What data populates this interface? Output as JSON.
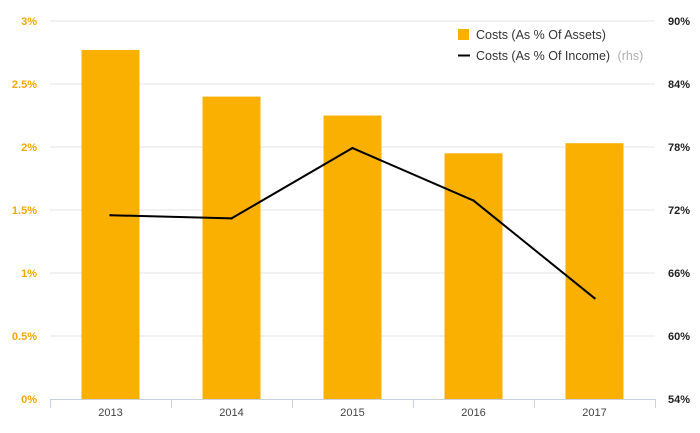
{
  "chart_data": {
    "type": "bar+line",
    "categories": [
      "2013",
      "2014",
      "2015",
      "2016",
      "2017"
    ],
    "series": [
      {
        "name": "Costs (As % Of Assets)",
        "type": "bar",
        "axis": "left",
        "color": "#f9b000",
        "values": [
          2.77,
          2.4,
          2.25,
          1.95,
          2.03
        ]
      },
      {
        "name": "Costs (As % Of Income)",
        "name_suffix": "(rhs)",
        "type": "line",
        "axis": "right",
        "color": "#000000",
        "values": [
          71.5,
          71.2,
          77.9,
          72.9,
          63.6
        ]
      }
    ],
    "y_left": {
      "ylim": [
        0,
        3
      ],
      "ticks": [
        0,
        0.5,
        1,
        1.5,
        2,
        2.5,
        3
      ],
      "tick_labels": [
        "0%",
        "0.5%",
        "1%",
        "1.5%",
        "2%",
        "2.5%",
        "3%"
      ],
      "color": "#f5a800"
    },
    "y_right": {
      "ylim": [
        54,
        90
      ],
      "ticks": [
        54,
        60,
        66,
        72,
        78,
        84,
        90
      ],
      "tick_labels": [
        "54%",
        "60%",
        "66%",
        "72%",
        "78%",
        "84%",
        "90%"
      ],
      "color": "#222222"
    },
    "grid": true,
    "legend_position": "top-right"
  }
}
